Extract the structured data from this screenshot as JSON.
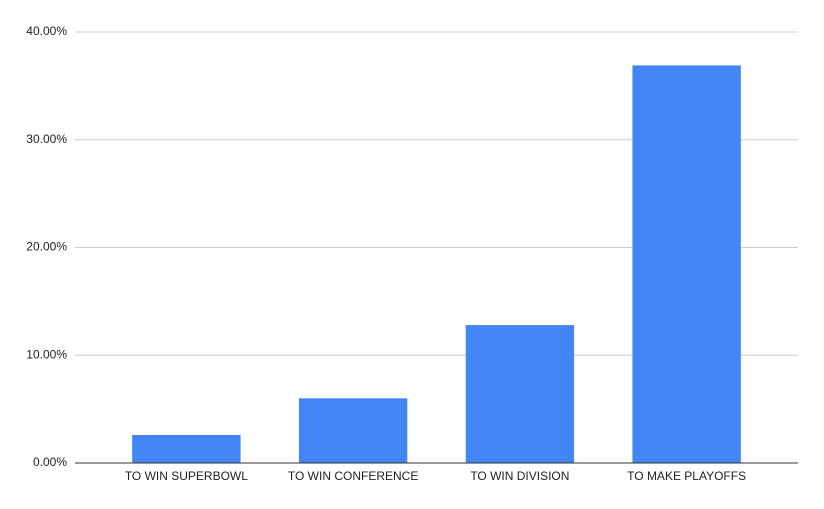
{
  "chart_data": {
    "type": "bar",
    "categories": [
      "TO WIN SUPERBOWL",
      "TO WIN CONFERENCE",
      "TO WIN DIVISION",
      "TO MAKE PLAYOFFS"
    ],
    "values": [
      2.6,
      6.0,
      12.8,
      36.9
    ],
    "color": "#4285f4",
    "ylim": [
      0,
      40
    ],
    "yticks": [
      {
        "value": 0,
        "label": "0.00%"
      },
      {
        "value": 10,
        "label": "10.00%"
      },
      {
        "value": 20,
        "label": "20.00%"
      },
      {
        "value": 30,
        "label": "30.00%"
      },
      {
        "value": 40,
        "label": "40.00%"
      }
    ],
    "grid": true
  }
}
